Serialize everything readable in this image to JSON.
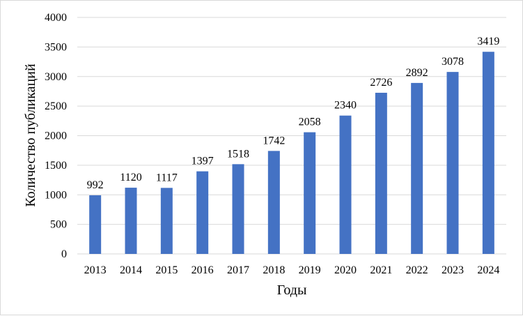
{
  "chart_data": {
    "type": "bar",
    "title": "",
    "xlabel": "Годы",
    "ylabel": "Количество публикаций",
    "categories": [
      "2013",
      "2014",
      "2015",
      "2016",
      "2017",
      "2018",
      "2019",
      "2020",
      "2021",
      "2022",
      "2023",
      "2024"
    ],
    "values": [
      992,
      1120,
      1117,
      1397,
      1518,
      1742,
      2058,
      2340,
      2726,
      2892,
      3078,
      3419
    ],
    "ylim": [
      0,
      4000
    ],
    "yticks": [
      0,
      500,
      1000,
      1500,
      2000,
      2500,
      3000,
      3500,
      4000
    ],
    "grid": true,
    "legend": "none",
    "bar_color": "#4472c4",
    "grid_color": "#d9d9d9"
  }
}
